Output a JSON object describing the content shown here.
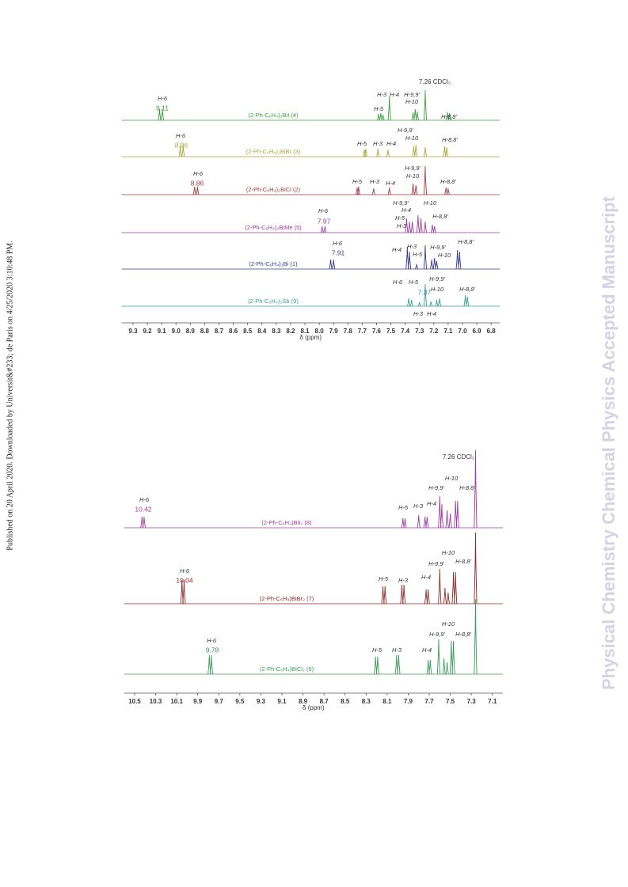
{
  "side_note": "Published on 20 April 2020. Downloaded by Universit&#233; de Paris on 4/25/2020 3:10:48 PM.",
  "watermark": "Physical Chemistry Chemical Physics Accepted Manuscript",
  "panels": [
    {
      "xlim": [
        9.38,
        6.74
      ],
      "xticks": [
        9.3,
        9.2,
        9.1,
        {
          "value": 9,
          "label": "9.0"
        },
        8.9,
        8.8,
        8.7,
        8.6,
        8.5,
        8.4,
        8.3,
        8.2,
        8.1,
        {
          "value": 8,
          "label": "8.0"
        },
        7.9,
        7.8,
        7.7,
        7.6,
        7.5,
        7.4,
        7.3,
        7.2,
        7.1,
        {
          "value": 7,
          "label": "7.0"
        },
        6.9,
        6.8
      ],
      "xlabel": "δ (ppm)",
      "solvent_label": "7.26 CDCl₃",
      "traces": [
        {
          "label": "(2-Ph-C₆H₄)₂BiI (4)",
          "color": "#3c9c3c",
          "shift": 9.11,
          "peaks": [
            [
              9.115,
              14
            ],
            [
              9.095,
              14
            ],
            [
              7.585,
              8
            ],
            [
              7.57,
              9
            ],
            [
              7.555,
              7
            ],
            [
              7.51,
              30
            ],
            [
              7.345,
              10
            ],
            [
              7.33,
              14
            ],
            [
              7.315,
              11
            ],
            [
              7.26,
              38
            ],
            [
              7.105,
              10
            ],
            [
              7.09,
              9
            ]
          ],
          "annotations": [
            "H-6",
            "H-3",
            "H-4",
            "H-5",
            "H-9,9'",
            "H-10",
            "H-8,8'"
          ]
        },
        {
          "label": "(2-Ph-C₆H₄)₂BiBr (3)",
          "color": "#a8a83a",
          "shift": 8.96,
          "peaks": [
            [
              8.97,
              14
            ],
            [
              8.95,
              14
            ],
            [
              7.685,
              9
            ],
            [
              7.675,
              10
            ],
            [
              7.59,
              10
            ],
            [
              7.52,
              9
            ],
            [
              7.34,
              13
            ],
            [
              7.325,
              15
            ],
            [
              7.26,
              12
            ],
            [
              7.125,
              13
            ],
            [
              7.11,
              12
            ]
          ],
          "annotations": [
            "H-6",
            "H-5",
            "H-3",
            "H-4",
            "H-9,9'",
            "H-10",
            "H-8,8'"
          ]
        },
        {
          "label": "(2-Ph-C₆H₄)₂BiCl (2)",
          "color": "#a33a3a",
          "shift": 8.86,
          "peaks": [
            [
              8.87,
              10
            ],
            [
              8.85,
              10
            ],
            [
              7.735,
              9
            ],
            [
              7.725,
              10
            ],
            [
              7.62,
              8
            ],
            [
              7.51,
              9
            ],
            [
              7.345,
              14
            ],
            [
              7.325,
              12
            ],
            [
              7.26,
              36
            ],
            [
              7.115,
              9
            ],
            [
              7.1,
              8
            ]
          ],
          "annotations": [
            "H-6",
            "H-5",
            "H-3",
            "H-4",
            "H-9,9'",
            "H-10",
            "H-8,8'"
          ]
        },
        {
          "label": "(2-Ph-C₆H₄)₂BiMe (5)",
          "color": "#9b3b9b",
          "shift": 7.97,
          "peaks": [
            [
              7.98,
              8
            ],
            [
              7.96,
              8
            ],
            [
              7.39,
              18
            ],
            [
              7.37,
              14
            ],
            [
              7.35,
              14
            ],
            [
              7.31,
              22
            ],
            [
              7.29,
              18
            ],
            [
              7.26,
              14
            ],
            [
              7.21,
              10
            ],
            [
              7.195,
              8
            ]
          ],
          "annotations": [
            "H-6",
            "H-9,9'",
            "H-10",
            "H-4",
            "H-5",
            "H-3",
            "H-8,8'"
          ]
        },
        {
          "label": "(2-Ph-C₆H₄)₃Bi (1)",
          "color": "#333a8a",
          "shift": 7.91,
          "peaks": [
            [
              7.92,
              12
            ],
            [
              7.9,
              12
            ],
            [
              7.385,
              28
            ],
            [
              7.37,
              22
            ],
            [
              7.32,
              6
            ],
            [
              7.26,
              30
            ],
            [
              7.215,
              12
            ],
            [
              7.195,
              14
            ],
            [
              7.18,
              10
            ],
            [
              7.035,
              24
            ],
            [
              7.02,
              22
            ]
          ],
          "annotations": [
            "H-6",
            "H-4",
            "H-3",
            "H-5",
            "H-9,9'",
            "H-10",
            "H-8,8'"
          ]
        },
        {
          "label": "(2-Ph-C₆H₄)₃Sb (9)",
          "color": "#3a9a9a",
          "shift": 7.37,
          "peaks": [
            [
              7.375,
              10
            ],
            [
              7.355,
              8
            ],
            [
              7.3,
              5
            ],
            [
              7.26,
              28
            ],
            [
              7.22,
              6
            ],
            [
              7.18,
              8
            ],
            [
              7.16,
              10
            ],
            [
              6.98,
              14
            ],
            [
              6.965,
              12
            ]
          ],
          "annotations": [
            "H-6",
            "H-5",
            "H-9,9'",
            "H-10",
            "H-8,8'",
            "H-3",
            "H-4"
          ]
        }
      ]
    },
    {
      "xlim": [
        10.6,
        7.0
      ],
      "xticks": [
        10.5,
        10.3,
        10.1,
        9.9,
        9.7,
        9.5,
        9.3,
        9.1,
        8.9,
        8.7,
        8.5,
        8.3,
        8.1,
        7.9,
        7.7,
        7.5,
        7.3,
        7.1
      ],
      "xlabel": "δ (ppm)",
      "solvent_label": "7.26 CDCl₃",
      "traces": [
        {
          "label": "(2-Ph-C₆H₄)BiI₂ (8)",
          "color": "#a03aa0",
          "shift": 10.42,
          "peaks": [
            [
              10.43,
              14
            ],
            [
              10.41,
              14
            ],
            [
              7.95,
              12
            ],
            [
              7.93,
              12
            ],
            [
              7.8,
              16
            ],
            [
              7.74,
              14
            ],
            [
              7.72,
              14
            ],
            [
              7.6,
              40
            ],
            [
              7.58,
              30
            ],
            [
              7.53,
              22
            ],
            [
              7.5,
              18
            ],
            [
              7.45,
              34
            ],
            [
              7.43,
              34
            ],
            [
              7.26,
              98
            ]
          ],
          "annotations": [
            "H-6",
            "H-5",
            "H-3",
            "H-4",
            "H-9,9'",
            "H-10",
            "H-8,8'"
          ]
        },
        {
          "label": "(2-Ph-C₆H₄)BiBr₂ (7)",
          "color": "#8b2a2a",
          "shift": 10.04,
          "peaks": [
            [
              10.05,
              30
            ],
            [
              10.03,
              30
            ],
            [
              8.14,
              22
            ],
            [
              8.12,
              22
            ],
            [
              7.96,
              24
            ],
            [
              7.94,
              24
            ],
            [
              7.73,
              18
            ],
            [
              7.71,
              18
            ],
            [
              7.6,
              44
            ],
            [
              7.55,
              20
            ],
            [
              7.52,
              14
            ],
            [
              7.47,
              40
            ],
            [
              7.45,
              40
            ],
            [
              7.26,
              90
            ]
          ],
          "annotations": [
            "H-6",
            "H-5",
            "H-3",
            "H-4",
            "H-9,9'",
            "H-10",
            "H-8,8'"
          ]
        },
        {
          "label": "(2-Ph-C₆H₄)BiCl₂ (6)",
          "color": "#3a9a5a",
          "shift": 9.78,
          "peaks": [
            [
              9.79,
              24
            ],
            [
              9.77,
              24
            ],
            [
              8.21,
              22
            ],
            [
              8.19,
              22
            ],
            [
              8.01,
              24
            ],
            [
              7.99,
              24
            ],
            [
              7.71,
              18
            ],
            [
              7.69,
              18
            ],
            [
              7.61,
              44
            ],
            [
              7.56,
              20
            ],
            [
              7.53,
              15
            ],
            [
              7.49,
              42
            ],
            [
              7.47,
              42
            ],
            [
              7.26,
              95
            ]
          ],
          "annotations": [
            "H-6",
            "H-5",
            "H-3",
            "H-4",
            "H-9,9'",
            "H-10",
            "H-8,8'"
          ]
        }
      ]
    }
  ]
}
